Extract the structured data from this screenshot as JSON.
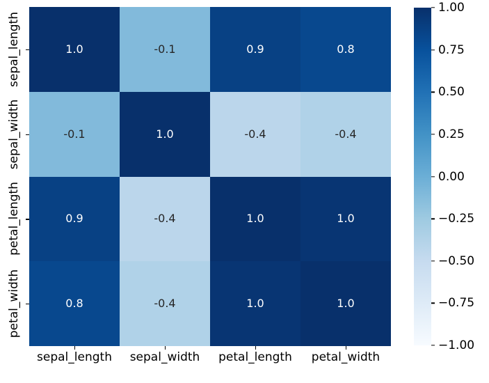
{
  "figure": {
    "background_color": "#ffffff",
    "text_color": "#000000"
  },
  "chart_data": {
    "type": "heatmap",
    "title": "",
    "xlabel": "",
    "ylabel": "",
    "colormap": "Blues",
    "vmin": -1,
    "vmax": 1,
    "grid": false,
    "legend_position": "colorbar-right",
    "x_categories": [
      "sepal_length",
      "sepal_width",
      "petal_length",
      "petal_width"
    ],
    "y_categories": [
      "sepal_length",
      "sepal_width",
      "petal_length",
      "petal_width"
    ],
    "annotations": [
      [
        "1.0",
        "-0.1",
        "0.9",
        "0.8"
      ],
      [
        "-0.1",
        "1.0",
        "-0.4",
        "-0.4"
      ],
      [
        "0.9",
        "-0.4",
        "1.0",
        "1.0"
      ],
      [
        "0.8",
        "-0.4",
        "1.0",
        "1.0"
      ]
    ],
    "values": [
      [
        1.0,
        -0.1,
        0.9,
        0.8
      ],
      [
        -0.1,
        1.0,
        -0.4,
        -0.4
      ],
      [
        0.9,
        -0.4,
        1.0,
        1.0
      ],
      [
        0.8,
        -0.4,
        1.0,
        1.0
      ]
    ],
    "cell_colors": [
      [
        "#08306b",
        "#82badb",
        "#084184",
        "#08488e"
      ],
      [
        "#82badb",
        "#08306b",
        "#bbd6eb",
        "#b0d2e8"
      ],
      [
        "#084184",
        "#bbd6eb",
        "#08306b",
        "#083573"
      ],
      [
        "#08488e",
        "#b0d2e8",
        "#083573",
        "#08306b"
      ]
    ],
    "annotation_colors": [
      [
        "#ffffff",
        "#262626",
        "#ffffff",
        "#ffffff"
      ],
      [
        "#262626",
        "#ffffff",
        "#262626",
        "#262626"
      ],
      [
        "#ffffff",
        "#262626",
        "#ffffff",
        "#ffffff"
      ],
      [
        "#ffffff",
        "#262626",
        "#ffffff",
        "#ffffff"
      ]
    ],
    "colorbar": {
      "tick_labels": [
        "1.00",
        "0.75",
        "0.50",
        "0.25",
        "0.00",
        "−0.25",
        "−0.50",
        "−0.75",
        "−1.00"
      ],
      "gradient_stops": [
        "#f7fbff",
        "#deebf7",
        "#c6dbef",
        "#9ecae1",
        "#6baed6",
        "#4292c6",
        "#2171b5",
        "#08519c",
        "#08306b"
      ]
    }
  }
}
